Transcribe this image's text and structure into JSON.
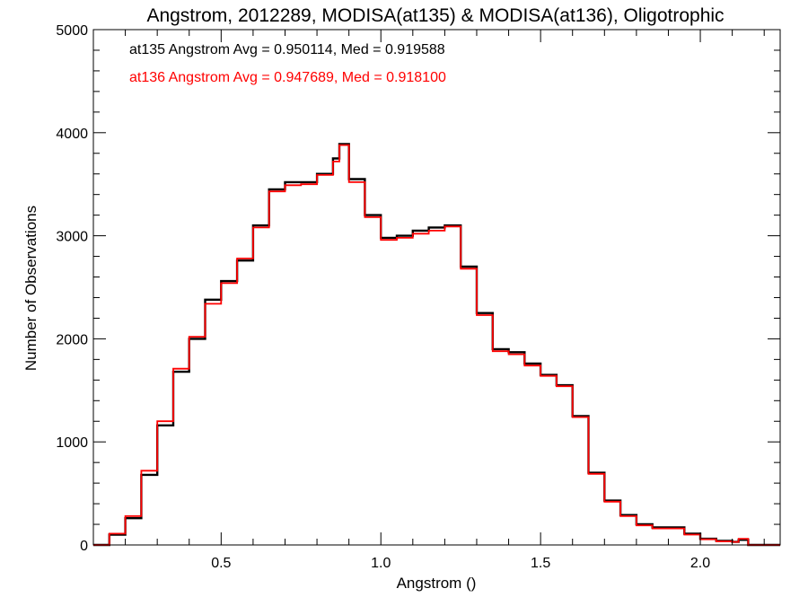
{
  "chart_data": {
    "type": "line",
    "step": true,
    "title": "Angstrom, 2012289, MODISA(at135) & MODISA(at136), Oligotrophic",
    "xlabel": "Angstrom ()",
    "ylabel": "Number of Observations",
    "xlim": [
      0.1,
      2.25
    ],
    "ylim": [
      0,
      5000
    ],
    "xticks": [
      0.5,
      1.0,
      1.5,
      2.0
    ],
    "xtick_labels": [
      "0.5",
      "1.0",
      "1.5",
      "2.0"
    ],
    "yticks": [
      0,
      1000,
      2000,
      3000,
      4000,
      5000
    ],
    "ytick_labels": [
      "0",
      "1000",
      "2000",
      "3000",
      "4000",
      "5000"
    ],
    "grid": false,
    "annotations": [
      {
        "text": "at135 Angstrom Avg = 0.950114, Med = 0.919588",
        "color": "#000000"
      },
      {
        "text": "at136 Angstrom Avg = 0.947689, Med = 0.918100",
        "color": "#ff0000"
      }
    ],
    "series": [
      {
        "color": "#000000",
        "x": [
          0.1,
          0.15,
          0.2,
          0.25,
          0.3,
          0.35,
          0.4,
          0.45,
          0.5,
          0.55,
          0.6,
          0.65,
          0.7,
          0.75,
          0.8,
          0.85,
          0.87,
          0.9,
          0.95,
          1.0,
          1.05,
          1.1,
          1.15,
          1.2,
          1.25,
          1.3,
          1.35,
          1.4,
          1.45,
          1.5,
          1.55,
          1.6,
          1.65,
          1.7,
          1.75,
          1.8,
          1.85,
          1.9,
          1.95,
          2.0,
          2.05,
          2.1,
          2.12,
          2.15,
          2.2,
          2.25
        ],
        "y": [
          0,
          100,
          260,
          680,
          1160,
          1680,
          2000,
          2380,
          2560,
          2760,
          3100,
          3450,
          3520,
          3520,
          3600,
          3750,
          3890,
          3550,
          3200,
          2980,
          3000,
          3050,
          3080,
          3100,
          2700,
          2250,
          1900,
          1870,
          1760,
          1650,
          1550,
          1250,
          700,
          430,
          290,
          200,
          170,
          170,
          110,
          60,
          40,
          30,
          50,
          0,
          0,
          0
        ]
      },
      {
        "color": "#ff0000",
        "x": [
          0.1,
          0.15,
          0.2,
          0.25,
          0.3,
          0.35,
          0.4,
          0.45,
          0.5,
          0.55,
          0.6,
          0.65,
          0.7,
          0.75,
          0.8,
          0.85,
          0.87,
          0.9,
          0.95,
          1.0,
          1.05,
          1.1,
          1.15,
          1.2,
          1.25,
          1.3,
          1.35,
          1.4,
          1.45,
          1.5,
          1.55,
          1.6,
          1.65,
          1.7,
          1.75,
          1.8,
          1.85,
          1.9,
          1.95,
          2.0,
          2.05,
          2.1,
          2.12,
          2.15,
          2.2,
          2.25
        ],
        "y": [
          0,
          110,
          280,
          720,
          1200,
          1710,
          2020,
          2340,
          2540,
          2780,
          3080,
          3430,
          3490,
          3500,
          3590,
          3720,
          3880,
          3520,
          3180,
          2960,
          2980,
          3020,
          3050,
          3090,
          2680,
          2230,
          1880,
          1850,
          1740,
          1640,
          1540,
          1240,
          690,
          420,
          280,
          190,
          160,
          160,
          100,
          55,
          35,
          30,
          60,
          0,
          0,
          0
        ]
      }
    ]
  }
}
